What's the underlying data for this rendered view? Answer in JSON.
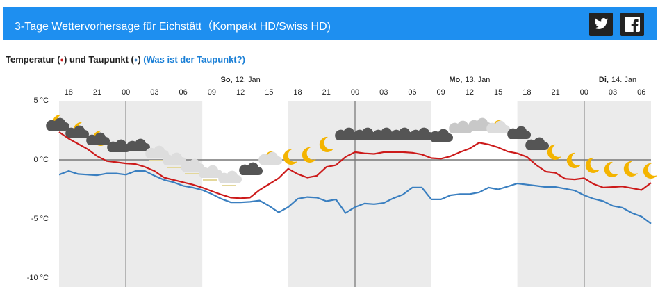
{
  "chart_data": {
    "type": "line",
    "title": "3-Tage Wettervorhersage für Eichstätt（Kompakt HD/Swiss HD)",
    "legend_open": "(",
    "legend_close": ")",
    "legend_dot": "●",
    "legend_joiner": "und",
    "help_link": "(Was ist der Taupunkt?)",
    "days": [
      {
        "day": "So,",
        "date": "12. Jan"
      },
      {
        "day": "Mo,",
        "date": "13. Jan"
      },
      {
        "day": "Di,",
        "date": "14. Jan"
      }
    ],
    "night": [
      [
        -1,
        14
      ],
      [
        23,
        38
      ],
      [
        47,
        61
      ]
    ],
    "x": [
      -1,
      0,
      1,
      2,
      3,
      4,
      5,
      6,
      7,
      8,
      9,
      10,
      11,
      12,
      13,
      14,
      15,
      16,
      17,
      18,
      19,
      20,
      21,
      22,
      23,
      24,
      25,
      26,
      27,
      28,
      29,
      30,
      31,
      32,
      33,
      34,
      35,
      36,
      37,
      38,
      39,
      40,
      41,
      42,
      43,
      44,
      45,
      46,
      47,
      48,
      49,
      50,
      51,
      52,
      53,
      54,
      55,
      56,
      57,
      58,
      59,
      60,
      61
    ],
    "xlim": [
      -1,
      61
    ],
    "xticks": [
      {
        "value": 0,
        "label": "18"
      },
      {
        "value": 3,
        "label": "21"
      },
      {
        "value": 6,
        "label": "00"
      },
      {
        "value": 9,
        "label": "03"
      },
      {
        "value": 12,
        "label": "06"
      },
      {
        "value": 15,
        "label": "09"
      },
      {
        "value": 18,
        "label": "12"
      },
      {
        "value": 21,
        "label": "15"
      },
      {
        "value": 24,
        "label": "18"
      },
      {
        "value": 27,
        "label": "21"
      },
      {
        "value": 30,
        "label": "00"
      },
      {
        "value": 33,
        "label": "03"
      },
      {
        "value": 36,
        "label": "06"
      },
      {
        "value": 39,
        "label": "09"
      },
      {
        "value": 42,
        "label": "12"
      },
      {
        "value": 45,
        "label": "15"
      },
      {
        "value": 48,
        "label": "18"
      },
      {
        "value": 51,
        "label": "21"
      },
      {
        "value": 54,
        "label": "00"
      },
      {
        "value": 57,
        "label": "03"
      },
      {
        "value": 60,
        "label": "06"
      }
    ],
    "ylim": [
      -10,
      5
    ],
    "yticks": [
      {
        "value": 5,
        "label": "5 °C"
      },
      {
        "value": 0,
        "label": "0 °C"
      },
      {
        "value": -5,
        "label": "-5 °C"
      },
      {
        "value": -10,
        "label": "-10 °C"
      }
    ],
    "series": [
      {
        "name": "Temperatur",
        "color": "#cc1a1a",
        "values": [
          2.35,
          1.8,
          1.35,
          0.9,
          0.3,
          -0.1,
          -0.2,
          -0.3,
          -0.35,
          -0.6,
          -0.95,
          -1.5,
          -1.7,
          -1.9,
          -2.1,
          -2.35,
          -2.65,
          -2.95,
          -3.2,
          -3.25,
          -3.2,
          -2.55,
          -2.05,
          -1.55,
          -0.75,
          -1.2,
          -1.5,
          -1.35,
          -0.6,
          -0.45,
          0.25,
          0.65,
          0.55,
          0.5,
          0.65,
          0.65,
          0.65,
          0.6,
          0.45,
          0.15,
          0.1,
          0.3,
          0.65,
          0.95,
          1.45,
          1.3,
          1.05,
          0.7,
          0.55,
          0.25,
          -0.45,
          -1.0,
          -1.1,
          -1.6,
          -1.65,
          -1.55,
          -2.05,
          -2.35,
          -2.3,
          -2.25,
          -2.4,
          -2.55,
          -1.95
        ]
      },
      {
        "name": "Taupunkt",
        "color": "#3a7fc0",
        "values": [
          -1.25,
          -0.95,
          -1.2,
          -1.25,
          -1.3,
          -1.15,
          -1.15,
          -1.25,
          -0.95,
          -0.95,
          -1.35,
          -1.7,
          -1.9,
          -2.2,
          -2.35,
          -2.55,
          -2.9,
          -3.3,
          -3.6,
          -3.6,
          -3.55,
          -3.45,
          -3.9,
          -4.45,
          -4.0,
          -3.3,
          -3.15,
          -3.2,
          -3.5,
          -3.35,
          -4.5,
          -4.0,
          -3.7,
          -3.75,
          -3.65,
          -3.25,
          -2.95,
          -2.35,
          -2.35,
          -3.35,
          -3.35,
          -3.0,
          -2.9,
          -2.9,
          -2.75,
          -2.35,
          -2.5,
          -2.25,
          -2.0,
          -2.1,
          -2.2,
          -2.3,
          -2.3,
          -2.45,
          -2.6,
          -3.0,
          -3.3,
          -3.5,
          -3.9,
          -4.05,
          -4.5,
          -4.8,
          -5.4
        ]
      }
    ]
  }
}
